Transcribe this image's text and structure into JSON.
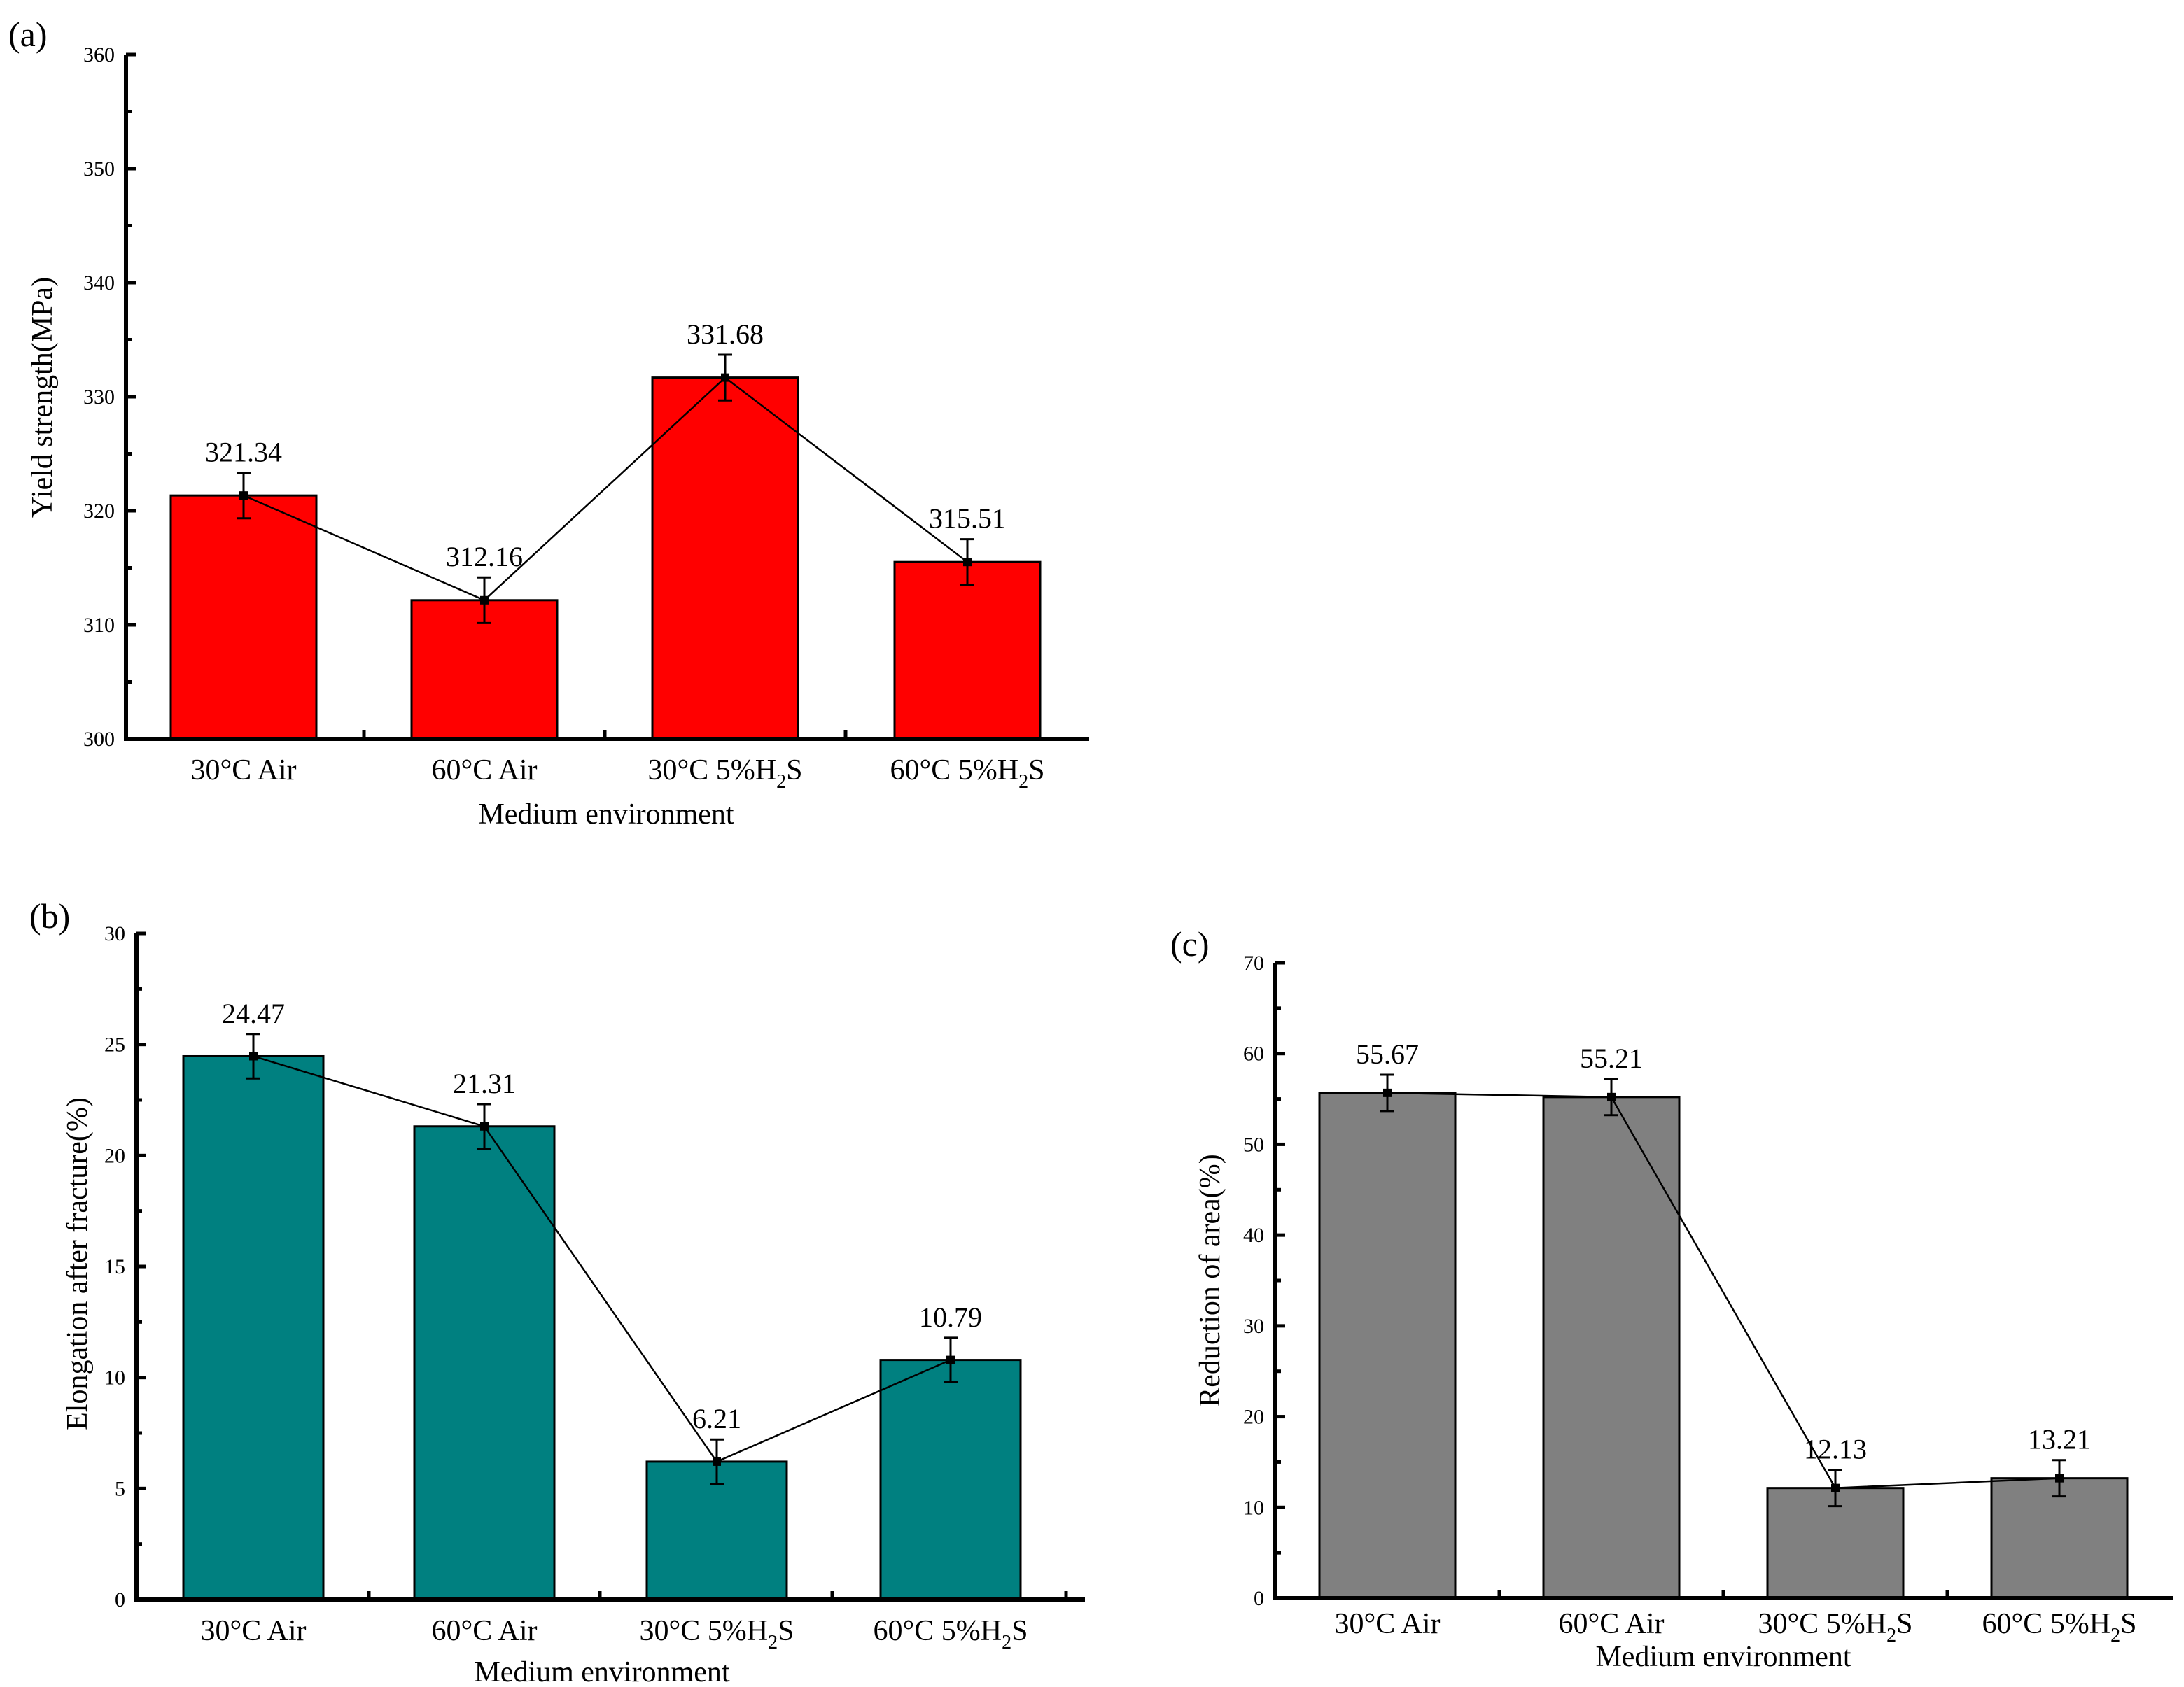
{
  "chart_data": [
    {
      "panel": "(a)",
      "type": "bar",
      "categories": [
        "30°C Air",
        "60°C Air",
        "30°C 5%H2S",
        "60°C 5%H2S"
      ],
      "values": [
        321.34,
        312.16,
        331.68,
        315.51
      ],
      "value_labels": [
        "321.34",
        "312.16",
        "331.68",
        "315.51"
      ],
      "error": [
        2.0,
        2.0,
        2.0,
        2.0
      ],
      "ylim": [
        300,
        360
      ],
      "yticks": [
        300,
        310,
        320,
        330,
        340,
        350,
        360
      ],
      "ylabel": "Yield strength(MPa)",
      "xlabel": "Medium environment",
      "bar_color": "#ff0000",
      "line_overlay": true
    },
    {
      "panel": "(b)",
      "type": "bar",
      "categories": [
        "30°C Air",
        "60°C Air",
        "30°C 5%H2S",
        "60°C 5%H2S"
      ],
      "values": [
        24.47,
        21.31,
        6.21,
        10.79
      ],
      "value_labels": [
        "24.47",
        "21.31",
        "6.21",
        "10.79"
      ],
      "error": [
        1.0,
        1.0,
        1.0,
        1.0
      ],
      "ylim": [
        0,
        30
      ],
      "yticks": [
        0,
        5,
        10,
        15,
        20,
        25,
        30
      ],
      "ylabel": "Elongation after fracture(%)",
      "xlabel": "Medium environment",
      "bar_color": "#008080",
      "line_overlay": true
    },
    {
      "panel": "(c)",
      "type": "bar",
      "categories": [
        "30°C Air",
        "60°C Air",
        "30°C 5%H2S",
        "60°C 5%H2S"
      ],
      "values": [
        55.67,
        55.21,
        12.13,
        13.21
      ],
      "value_labels": [
        "55.67",
        "55.21",
        "12.13",
        "13.21"
      ],
      "error": [
        2.0,
        2.0,
        2.0,
        2.0
      ],
      "ylim": [
        0,
        70
      ],
      "yticks": [
        0,
        10,
        20,
        30,
        40,
        50,
        60,
        70
      ],
      "ylabel": "Reduction of area(%)",
      "xlabel": "Medium environment",
      "bar_color": "#808080",
      "line_overlay": true
    }
  ]
}
